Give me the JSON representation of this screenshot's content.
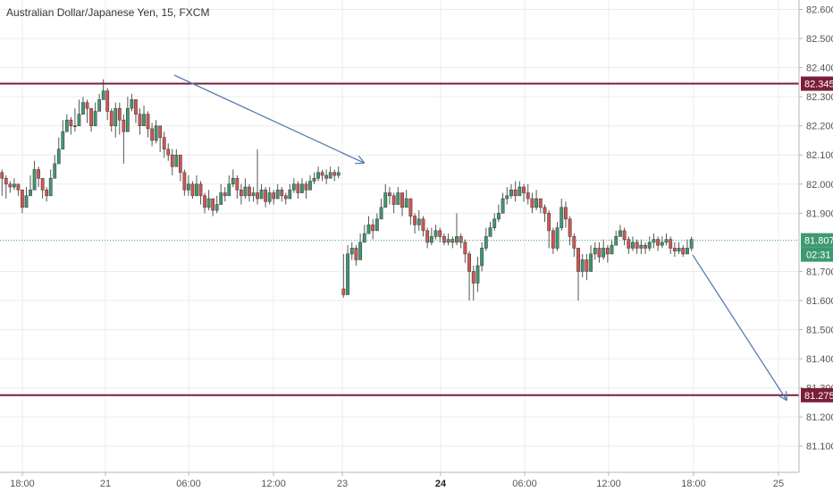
{
  "chart": {
    "title": "Australian Dollar/Japanese Yen, 15, FXCM",
    "countdown": "02:31"
  },
  "chart_data": {
    "type": "candlestick",
    "title": "Australian Dollar/Japanese Yen, 15, FXCM",
    "ylim": [
      81.05,
      82.62
    ],
    "y_ticks": [
      "82.600",
      "82.500",
      "82.400",
      "82.300",
      "82.200",
      "82.100",
      "82.000",
      "81.900",
      "81.700",
      "81.600",
      "81.500",
      "81.400",
      "81.300",
      "81.200",
      "81.100"
    ],
    "x_ticks": [
      "18:00",
      "21",
      "06:00",
      "12:00",
      "23",
      "24",
      "06:00",
      "12:00",
      "18:00",
      "25"
    ],
    "x_ticks_bold": [
      "24"
    ],
    "current_price": "81.807",
    "horizontal_levels": [
      "82.345",
      "81.275"
    ],
    "colors": {
      "up": "#3d9970",
      "down": "#d9534f",
      "level": "#7b1e3a",
      "current": "#3d9970",
      "arrow": "#5b7db1",
      "grid": "#ececec"
    },
    "day1_bars": 96,
    "day2_bars": 96,
    "day1_path": [
      [
        82.02,
        82.05,
        81.96
      ],
      [
        82.0,
        82.03,
        81.95
      ],
      [
        81.99,
        82.01,
        81.97
      ],
      [
        82.0,
        82.02,
        81.98
      ],
      [
        81.98,
        81.99,
        81.96
      ],
      [
        81.92,
        81.94,
        81.9
      ],
      [
        81.96,
        81.99,
        81.93
      ],
      [
        81.98,
        82.03,
        81.97
      ],
      [
        82.05,
        82.08,
        82.03
      ],
      [
        82.02,
        82.06,
        81.99
      ],
      [
        81.98,
        82.02,
        81.95
      ],
      [
        81.96,
        81.99,
        81.94
      ],
      [
        82.02,
        82.05,
        82.0
      ],
      [
        82.07,
        82.1,
        82.04
      ],
      [
        82.12,
        82.16,
        82.1
      ],
      [
        82.18,
        82.22,
        82.16
      ],
      [
        82.22,
        82.24,
        82.18
      ],
      [
        82.2,
        82.23,
        82.17
      ],
      [
        82.2,
        82.26,
        82.18
      ],
      [
        82.24,
        82.29,
        82.21
      ],
      [
        82.28,
        82.3,
        82.24
      ],
      [
        82.26,
        82.29,
        82.21
      ],
      [
        82.2,
        82.23,
        82.18
      ],
      [
        82.25,
        82.28,
        82.22
      ],
      [
        82.29,
        82.31,
        82.26
      ],
      [
        82.32,
        82.36,
        82.3
      ],
      [
        82.25,
        82.33,
        82.22
      ],
      [
        82.2,
        82.26,
        82.18
      ],
      [
        82.26,
        82.28,
        82.16
      ],
      [
        82.22,
        82.28,
        82.17
      ],
      [
        82.18,
        82.24,
        82.07
      ],
      [
        82.26,
        82.3,
        82.2
      ],
      [
        82.29,
        82.31,
        82.25
      ],
      [
        82.24,
        82.29,
        82.21
      ],
      [
        82.2,
        82.26,
        82.17
      ],
      [
        82.24,
        82.27,
        82.2
      ],
      [
        82.19,
        82.25,
        82.16
      ],
      [
        82.15,
        82.21,
        82.13
      ],
      [
        82.2,
        82.22,
        82.14
      ],
      [
        82.16,
        82.2,
        82.11
      ],
      [
        82.12,
        82.18,
        82.09
      ],
      [
        82.1,
        82.14,
        82.08
      ],
      [
        82.06,
        82.12,
        82.03
      ],
      [
        82.1,
        82.12,
        82.06
      ],
      [
        82.04,
        82.1,
        82.01
      ],
      [
        81.98,
        82.05,
        81.96
      ],
      [
        82.0,
        82.03,
        81.96
      ],
      [
        81.96,
        82.01,
        81.95
      ],
      [
        82.0,
        82.03,
        81.97
      ],
      [
        81.96,
        82.01,
        81.93
      ],
      [
        81.92,
        81.97,
        81.9
      ],
      [
        81.95,
        81.98,
        81.91
      ],
      [
        81.91,
        81.95,
        81.89
      ],
      [
        81.93,
        81.96,
        81.9
      ],
      [
        81.97,
        82.0,
        81.94
      ],
      [
        81.96,
        81.99,
        81.94
      ],
      [
        82.0,
        82.03,
        81.97
      ],
      [
        82.02,
        82.05,
        81.99
      ],
      [
        81.98,
        82.03,
        81.95
      ],
      [
        81.96,
        82.0,
        81.93
      ],
      [
        81.99,
        82.02,
        81.95
      ],
      [
        81.96,
        82.0,
        81.94
      ],
      [
        81.97,
        81.99,
        81.94
      ],
      [
        81.95,
        82.12,
        81.93
      ],
      [
        81.98,
        82.0,
        81.95
      ],
      [
        81.94,
        81.99,
        81.92
      ],
      [
        81.97,
        81.99,
        81.93
      ],
      [
        81.95,
        81.98,
        81.93
      ],
      [
        81.98,
        82.0,
        81.95
      ],
      [
        81.96,
        81.99,
        81.94
      ],
      [
        81.95,
        81.97,
        81.93
      ],
      [
        81.98,
        82.0,
        81.95
      ],
      [
        82.0,
        82.02,
        81.97
      ],
      [
        81.97,
        82.01,
        81.95
      ],
      [
        82.0,
        82.02,
        81.97
      ],
      [
        81.98,
        82.01,
        81.95
      ],
      [
        82.01,
        82.03,
        81.98
      ],
      [
        82.02,
        82.04,
        82.0
      ],
      [
        82.04,
        82.06,
        82.01
      ],
      [
        82.03,
        82.05,
        82.01
      ],
      [
        82.02,
        82.05,
        82.0
      ],
      [
        82.04,
        82.06,
        82.02
      ],
      [
        82.03,
        82.05,
        82.01
      ],
      [
        82.04,
        82.06,
        82.02
      ]
    ],
    "day2_path": [
      [
        81.62,
        81.76,
        81.61
      ],
      [
        81.76,
        81.79,
        81.73
      ],
      [
        81.78,
        81.8,
        81.74
      ],
      [
        81.74,
        81.79,
        81.72
      ],
      [
        81.8,
        81.83,
        81.77
      ],
      [
        81.83,
        81.86,
        81.8
      ],
      [
        81.86,
        81.89,
        81.83
      ],
      [
        81.84,
        81.88,
        81.81
      ],
      [
        81.88,
        81.9,
        81.85
      ],
      [
        81.92,
        81.95,
        81.89
      ],
      [
        81.97,
        82.0,
        81.94
      ],
      [
        81.96,
        81.99,
        81.93
      ],
      [
        81.93,
        81.97,
        81.9
      ],
      [
        81.97,
        81.99,
        81.94
      ],
      [
        81.92,
        81.97,
        81.89
      ],
      [
        81.95,
        81.98,
        81.92
      ],
      [
        81.89,
        81.95,
        81.86
      ],
      [
        81.86,
        81.9,
        81.83
      ],
      [
        81.88,
        81.91,
        81.84
      ],
      [
        81.84,
        81.89,
        81.82
      ],
      [
        81.8,
        81.85,
        81.78
      ],
      [
        81.82,
        81.85,
        81.79
      ],
      [
        81.84,
        81.86,
        81.81
      ],
      [
        81.82,
        81.85,
        81.8
      ],
      [
        81.8,
        81.83,
        81.79
      ],
      [
        81.81,
        81.83,
        81.79
      ],
      [
        81.8,
        81.82,
        81.78
      ],
      [
        81.82,
        81.9,
        81.79
      ],
      [
        81.8,
        81.83,
        81.78
      ],
      [
        81.76,
        81.81,
        81.73
      ],
      [
        81.7,
        81.77,
        81.6
      ],
      [
        81.66,
        81.72,
        81.6
      ],
      [
        81.72,
        81.75,
        81.63
      ],
      [
        81.78,
        81.8,
        81.7
      ],
      [
        81.82,
        81.85,
        81.77
      ],
      [
        81.85,
        81.87,
        81.82
      ],
      [
        81.88,
        81.9,
        81.84
      ],
      [
        81.9,
        81.93,
        81.87
      ],
      [
        81.95,
        81.97,
        81.91
      ],
      [
        81.96,
        81.99,
        81.93
      ],
      [
        81.98,
        82.0,
        81.95
      ],
      [
        81.96,
        82.01,
        81.94
      ],
      [
        81.99,
        82.01,
        81.96
      ],
      [
        81.97,
        82.0,
        81.94
      ],
      [
        81.95,
        82.0,
        81.93
      ],
      [
        81.92,
        81.97,
        81.9
      ],
      [
        81.95,
        81.98,
        81.91
      ],
      [
        81.92,
        81.95,
        81.9
      ],
      [
        81.9,
        81.93,
        81.87
      ],
      [
        81.84,
        81.91,
        81.78
      ],
      [
        81.78,
        81.85,
        81.76
      ],
      [
        81.85,
        81.87,
        81.77
      ],
      [
        81.92,
        81.95,
        81.84
      ],
      [
        81.88,
        81.94,
        81.85
      ],
      [
        81.82,
        81.89,
        81.79
      ],
      [
        81.78,
        81.83,
        81.75
      ],
      [
        81.7,
        81.78,
        81.6
      ],
      [
        81.74,
        81.76,
        81.68
      ],
      [
        81.7,
        81.76,
        81.67
      ],
      [
        81.76,
        81.79,
        81.72
      ],
      [
        81.78,
        81.8,
        81.74
      ],
      [
        81.75,
        81.8,
        81.73
      ],
      [
        81.78,
        81.81,
        81.74
      ],
      [
        81.76,
        81.79,
        81.73
      ],
      [
        81.79,
        81.81,
        81.76
      ],
      [
        81.82,
        81.84,
        81.79
      ],
      [
        81.84,
        81.86,
        81.82
      ],
      [
        81.81,
        81.85,
        81.79
      ],
      [
        81.78,
        81.82,
        81.76
      ],
      [
        81.8,
        81.82,
        81.77
      ],
      [
        81.78,
        81.81,
        81.76
      ],
      [
        81.79,
        81.81,
        81.76
      ],
      [
        81.78,
        81.8,
        81.76
      ],
      [
        81.8,
        81.82,
        81.77
      ],
      [
        81.81,
        81.83,
        81.78
      ],
      [
        81.79,
        81.82,
        81.77
      ],
      [
        81.8,
        81.82,
        81.78
      ],
      [
        81.81,
        81.83,
        81.79
      ],
      [
        81.78,
        81.82,
        81.76
      ],
      [
        81.77,
        81.8,
        81.75
      ],
      [
        81.78,
        81.8,
        81.76
      ],
      [
        81.76,
        81.79,
        81.75
      ],
      [
        81.78,
        81.81,
        81.76
      ],
      [
        81.81,
        81.82,
        81.77
      ]
    ]
  }
}
